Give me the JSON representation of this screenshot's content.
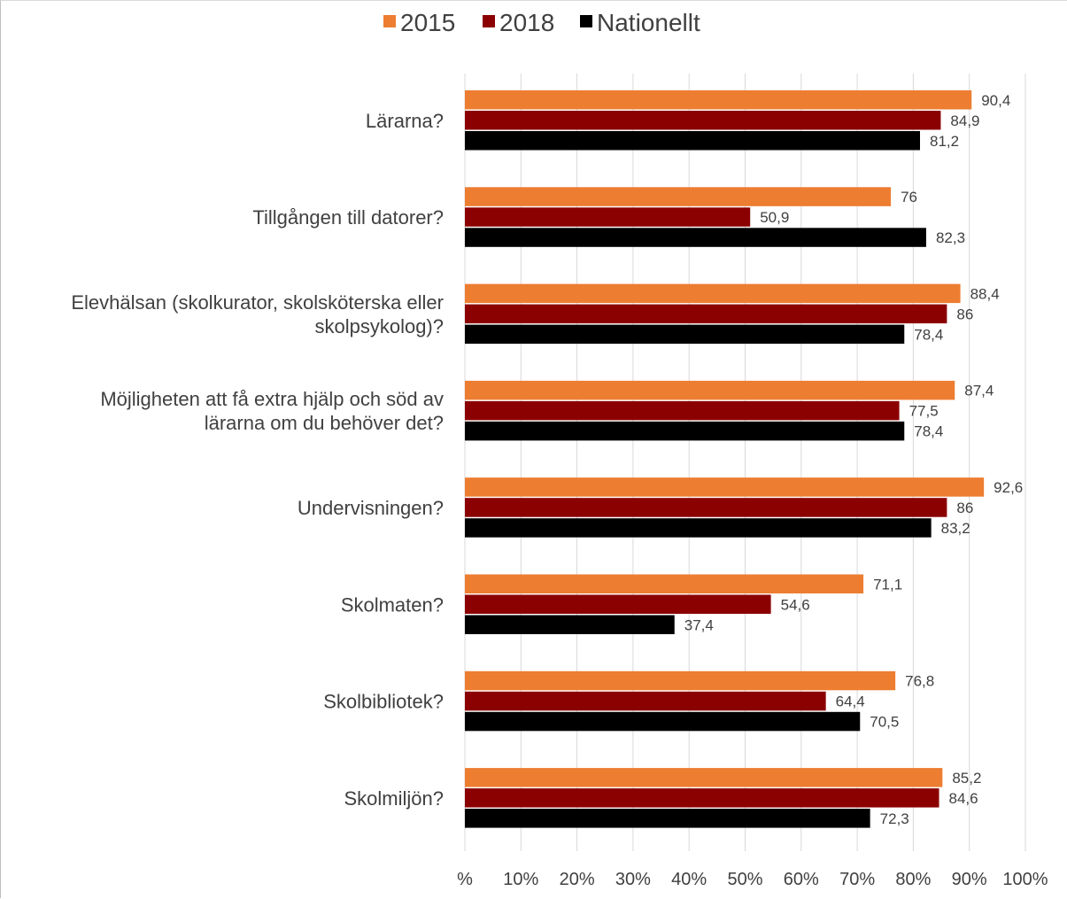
{
  "chart_data": {
    "type": "bar",
    "orientation": "horizontal",
    "categories": [
      [
        "Lärarna?"
      ],
      [
        "Tillgången till datorer?"
      ],
      [
        "Elevhälsan (skolkurator, skolsköterska eller",
        "skolpsykolog)?"
      ],
      [
        "Möjligheten att få extra hjälp och söd av",
        "lärarna om du behöver det?"
      ],
      [
        "Undervisningen?"
      ],
      [
        "Skolmaten?"
      ],
      [
        "Skolbibliotek?"
      ],
      [
        "Skolmiljön?"
      ]
    ],
    "series": [
      {
        "name": "2015",
        "color": "#ED7D31",
        "values": [
          90.4,
          76,
          88.4,
          87.4,
          92.6,
          71.1,
          76.8,
          85.2
        ],
        "labels": [
          "90,4",
          "76",
          "88,4",
          "87,4",
          "92,6",
          "71,1",
          "76,8",
          "85,2"
        ]
      },
      {
        "name": "2018",
        "color": "#8B0000",
        "values": [
          84.9,
          50.9,
          86,
          77.5,
          86,
          54.6,
          64.4,
          84.6
        ],
        "labels": [
          "84,9",
          "50,9",
          "86",
          "77,5",
          "86",
          "54,6",
          "64,4",
          "84,6"
        ]
      },
      {
        "name": "Nationellt",
        "color": "#000000",
        "values": [
          81.2,
          82.3,
          78.4,
          78.4,
          83.2,
          37.4,
          70.5,
          72.3
        ],
        "labels": [
          "81,2",
          "82,3",
          "78,4",
          "78,4",
          "83,2",
          "37,4",
          "70,5",
          "72,3"
        ]
      }
    ],
    "xlim": [
      0,
      100
    ],
    "ticks": [
      0,
      10,
      20,
      30,
      40,
      50,
      60,
      70,
      80,
      90,
      100
    ],
    "tick_labels": [
      "%",
      "10%",
      "20%",
      "30%",
      "40%",
      "50%",
      "60%",
      "70%",
      "80%",
      "90%",
      "100%"
    ],
    "grid": true,
    "legend": "top"
  }
}
